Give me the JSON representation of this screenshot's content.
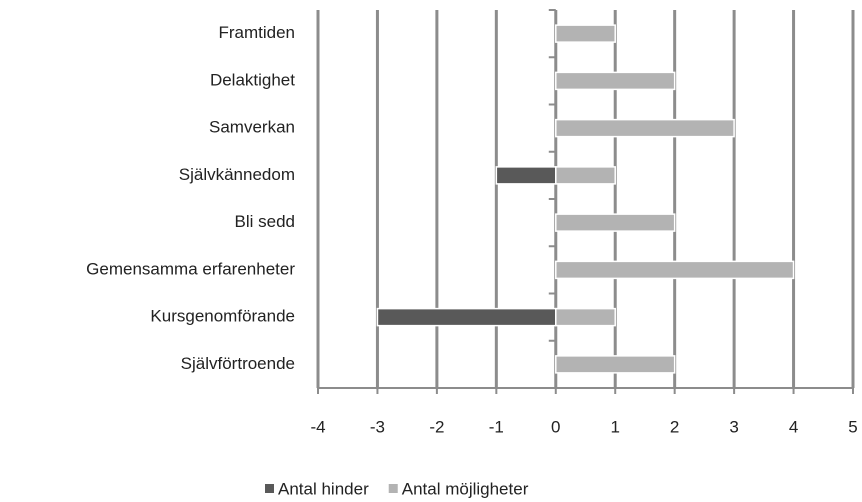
{
  "chart_data": {
    "type": "bar",
    "orientation": "horizontal",
    "categories": [
      "Framtiden",
      "Delaktighet",
      "Samverkan",
      "Självkännedom",
      "Bli sedd",
      "Gemensamma erfarenheter",
      "Kursgenomförande",
      "Självförtroende"
    ],
    "series": [
      {
        "name": "Antal hinder",
        "color": "#595959",
        "values": [
          0,
          0,
          0,
          -1,
          0,
          0,
          -3,
          0
        ]
      },
      {
        "name": "Antal möjligheter",
        "color": "#b3b3b3",
        "values": [
          1,
          2,
          3,
          1,
          2,
          4,
          1,
          2
        ]
      }
    ],
    "xlim": [
      -4,
      5
    ],
    "xticks": [
      -4,
      -3,
      -2,
      -1,
      0,
      1,
      2,
      3,
      4,
      5
    ],
    "grid": true,
    "legend": "bottom"
  }
}
